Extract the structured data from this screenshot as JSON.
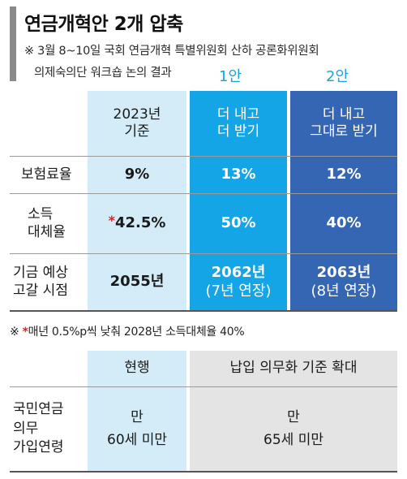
{
  "header": {
    "title": "연금개혁안 2개 압축",
    "subtitle_line1": "※ 3월 8~10일 국회 연금개혁 특별위원회 산하 공론화위원회",
    "subtitle_line2": "의제숙의단 워크숍 논의 결과"
  },
  "plans": {
    "plan1_label": "1안",
    "plan2_label": "2안"
  },
  "table1": {
    "columns": {
      "base_line1": "2023년",
      "base_line2": "기준",
      "plan1_line1": "더 내고",
      "plan1_line2": "더 받기",
      "plan2_line1": "더 내고",
      "plan2_line2": "그대로 받기"
    },
    "rows": [
      {
        "label_line1": "보험료율",
        "label_line2": "",
        "base": "9%",
        "plan1": "13%",
        "plan2": "12%"
      },
      {
        "label_line1": "소득",
        "label_line2": "대체율",
        "base_mark": "*",
        "base": "42.5%",
        "plan1": "50%",
        "plan2": "40%"
      },
      {
        "label_line1": "기금 예상",
        "label_line2": "고갈 시점",
        "base": "2055년",
        "plan1": "2062년",
        "plan1_sub": "(7년 연장)",
        "plan2": "2063년",
        "plan2_sub": "(8년 연장)"
      }
    ],
    "footnote_prefix": "※",
    "footnote_mark": "*",
    "footnote_text": "매년 0.5%p씩 낮춰 2028년 소득대체율 40%"
  },
  "table2": {
    "columns": {
      "current": "현행",
      "expanded": "납입 의무화 기준 확대"
    },
    "row": {
      "label_line1": "국민연금",
      "label_line2": "의무",
      "label_line3": "가입연령",
      "current_line1": "만",
      "current_line2": "60세 미만",
      "expanded_line1": "만",
      "expanded_line2": "65세 미만"
    }
  },
  "colors": {
    "light_blue": "#d3ecf8",
    "plan1_blue": "#14a5e6",
    "plan2_blue": "#3466b3",
    "gray": "#e4e4e4",
    "accent_text": "#1aa4dc",
    "footnote_red": "#e02020"
  }
}
